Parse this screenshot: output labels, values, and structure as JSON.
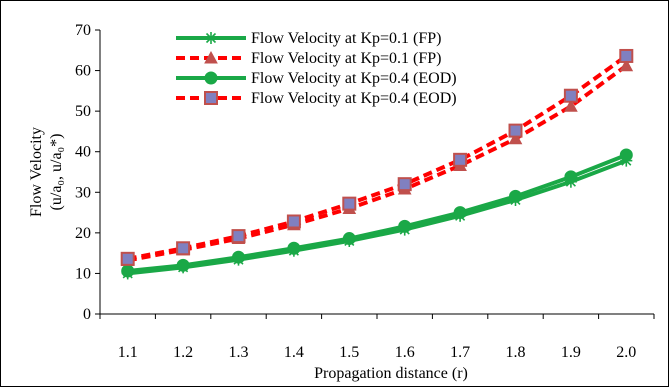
{
  "chart_data": {
    "type": "line",
    "xlabel": "Propagation distance (r)",
    "ylabel_line1": "Flow Velocity",
    "ylabel_line2": "(u/a₀, u/a₀*)",
    "x": [
      "1.1",
      "1.2",
      "1.3",
      "1.4",
      "1.5",
      "1.6",
      "1.7",
      "1.8",
      "1.9",
      "2.0"
    ],
    "ylim": [
      0,
      70
    ],
    "yticks": [
      "0",
      "10",
      "20",
      "30",
      "40",
      "50",
      "60",
      "70"
    ],
    "ytick_values": [
      0,
      10,
      20,
      30,
      40,
      50,
      60,
      70
    ],
    "grid": false,
    "legend_position": "top-left",
    "series": [
      {
        "name": "Flow Velocity at Kp=0.1 (FP)",
        "color": "#1aa847",
        "marker": "star",
        "dashed": false,
        "values": [
          10.0,
          11.5,
          13.4,
          15.6,
          18.0,
          20.8,
          24.2,
          28.1,
          32.6,
          37.8
        ]
      },
      {
        "name": "Flow Velocity at Kp=0.1 (FP)",
        "color": "#ff0000",
        "marker": "triangle",
        "marker_color": "#c0504d",
        "dashed": true,
        "values": [
          13.2,
          15.8,
          18.6,
          22.0,
          26.0,
          30.8,
          36.6,
          43.2,
          51.2,
          61.2
        ]
      },
      {
        "name": "Flow Velocity at Kp=0.4 (EOD)",
        "color": "#1aa847",
        "marker": "circle",
        "dashed": false,
        "values": [
          10.6,
          12.0,
          14.0,
          16.2,
          18.6,
          21.6,
          25.0,
          29.0,
          33.8,
          39.2
        ]
      },
      {
        "name": "Flow Velocity at Kp=0.4 (EOD)",
        "color": "#ff0000",
        "marker": "square",
        "marker_color": "#8080c0",
        "marker_edge": "#c0504d",
        "dashed": true,
        "values": [
          13.6,
          16.2,
          19.2,
          22.8,
          27.2,
          32.0,
          38.0,
          45.2,
          53.8,
          63.6
        ]
      }
    ]
  }
}
